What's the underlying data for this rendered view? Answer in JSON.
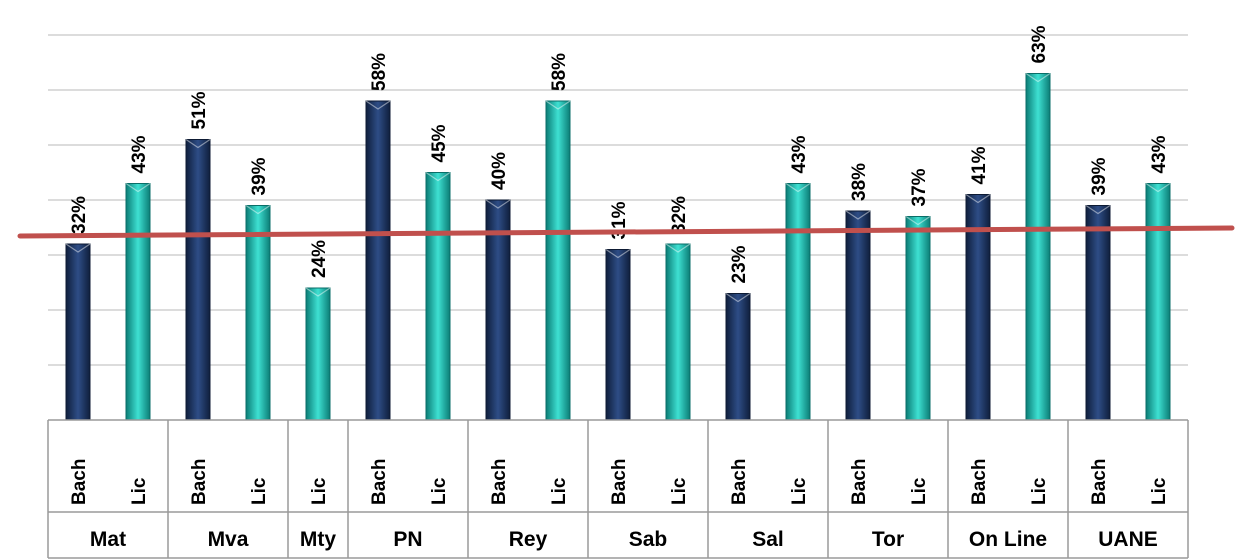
{
  "chart_data": {
    "type": "bar",
    "groups": [
      {
        "label": "Mat",
        "bars": [
          {
            "series": "Bach",
            "value": 32,
            "label": "32%"
          },
          {
            "series": "Lic",
            "value": 43,
            "label": "43%"
          }
        ]
      },
      {
        "label": "Mva",
        "bars": [
          {
            "series": "Bach",
            "value": 51,
            "label": "51%"
          },
          {
            "series": "Lic",
            "value": 39,
            "label": "39%"
          }
        ]
      },
      {
        "label": "Mty",
        "bars": [
          {
            "series": "Lic",
            "value": 24,
            "label": "24%"
          }
        ]
      },
      {
        "label": "PN",
        "bars": [
          {
            "series": "Bach",
            "value": 58,
            "label": "58%"
          },
          {
            "series": "Lic",
            "value": 45,
            "label": "45%"
          }
        ]
      },
      {
        "label": "Rey",
        "bars": [
          {
            "series": "Bach",
            "value": 40,
            "label": "40%"
          },
          {
            "series": "Lic",
            "value": 58,
            "label": "58%"
          }
        ]
      },
      {
        "label": "Sab",
        "bars": [
          {
            "series": "Bach",
            "value": 31,
            "label": "31%"
          },
          {
            "series": "Lic",
            "value": 32,
            "label": "32%"
          }
        ]
      },
      {
        "label": "Sal",
        "bars": [
          {
            "series": "Bach",
            "value": 23,
            "label": "23%"
          },
          {
            "series": "Lic",
            "value": 43,
            "label": "43%"
          }
        ]
      },
      {
        "label": "Tor",
        "bars": [
          {
            "series": "Bach",
            "value": 38,
            "label": "38%"
          },
          {
            "series": "Lic",
            "value": 37,
            "label": "37%"
          }
        ]
      },
      {
        "label": "On Line",
        "bars": [
          {
            "series": "Bach",
            "value": 41,
            "label": "41%"
          },
          {
            "series": "Lic",
            "value": 63,
            "label": "63%"
          }
        ]
      },
      {
        "label": "UANE",
        "bars": [
          {
            "series": "Bach",
            "value": 39,
            "label": "39%"
          },
          {
            "series": "Lic",
            "value": 43,
            "label": "43%"
          }
        ]
      }
    ],
    "ylim": [
      0,
      70
    ],
    "grid": true,
    "reference_line": {
      "value": 34,
      "color": "#c0504d"
    },
    "colors": {
      "Bach": "#1f3864",
      "Lic": "#20b2aa"
    },
    "title": "",
    "xlabel": "",
    "ylabel": ""
  }
}
